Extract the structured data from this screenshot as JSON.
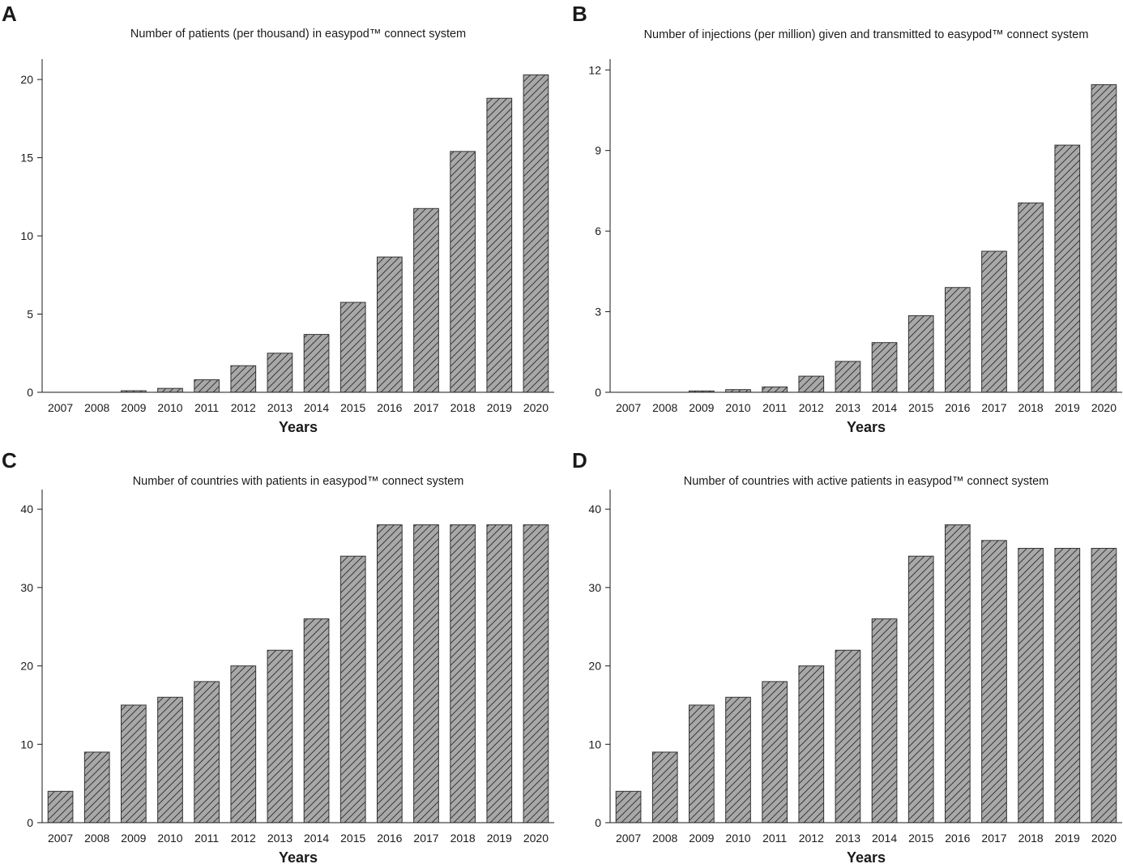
{
  "figure": {
    "bar_color": "#a8a8a8",
    "hatch_color": "#2a2a2a",
    "axis_color": "#1a1a1a"
  },
  "chart_data": [
    {
      "panel": "A",
      "type": "bar",
      "title": "Number of patients (per thousand) in easypod™ connect system",
      "xlabel": "Years",
      "ylabel": "",
      "categories": [
        "2007",
        "2008",
        "2009",
        "2010",
        "2011",
        "2012",
        "2013",
        "2014",
        "2015",
        "2016",
        "2017",
        "2018",
        "2019",
        "2020"
      ],
      "values": [
        0,
        0,
        0.1,
        0.25,
        0.8,
        1.7,
        2.5,
        3.7,
        5.75,
        8.65,
        11.75,
        15.4,
        18.8,
        20.3
      ],
      "ylim": [
        0,
        21.3
      ],
      "yticks": [
        0,
        5,
        10,
        15,
        20
      ],
      "ytick_labels": [
        "0",
        "5",
        "10",
        "15",
        "20"
      ],
      "grid": false
    },
    {
      "panel": "B",
      "type": "bar",
      "title": "Number of injections (per million) given and transmitted to easypod™ connect system",
      "xlabel": "Years",
      "ylabel": "",
      "categories": [
        "2007",
        "2008",
        "2009",
        "2010",
        "2011",
        "2012",
        "2013",
        "2014",
        "2015",
        "2016",
        "2017",
        "2018",
        "2019",
        "2020"
      ],
      "values": [
        0,
        0,
        0.05,
        0.1,
        0.2,
        0.6,
        1.15,
        1.85,
        2.85,
        3.9,
        5.25,
        7.05,
        9.2,
        11.45
      ],
      "ylim": [
        0,
        12.4
      ],
      "yticks": [
        0,
        3,
        6,
        9,
        12
      ],
      "ytick_labels": [
        "0",
        "3",
        "6",
        "9",
        "12"
      ],
      "grid": false
    },
    {
      "panel": "C",
      "type": "bar",
      "title": "Number of countries with patients in easypod™ connect system",
      "xlabel": "Years",
      "ylabel": "",
      "categories": [
        "2007",
        "2008",
        "2009",
        "2010",
        "2011",
        "2012",
        "2013",
        "2014",
        "2015",
        "2016",
        "2017",
        "2018",
        "2019",
        "2020"
      ],
      "values": [
        4,
        9,
        15,
        16,
        18,
        20,
        22,
        26,
        34,
        38,
        38,
        38,
        38,
        38
      ],
      "ylim": [
        0,
        42.5
      ],
      "yticks": [
        0,
        10,
        20,
        30,
        40
      ],
      "ytick_labels": [
        "0",
        "10",
        "20",
        "30",
        "40"
      ],
      "grid": false
    },
    {
      "panel": "D",
      "type": "bar",
      "title": "Number of countries with active patients in easypod™ connect system",
      "xlabel": "Years",
      "ylabel": "",
      "categories": [
        "2007",
        "2008",
        "2009",
        "2010",
        "2011",
        "2012",
        "2013",
        "2014",
        "2015",
        "2016",
        "2017",
        "2018",
        "2019",
        "2020"
      ],
      "values": [
        4,
        9,
        15,
        16,
        18,
        20,
        22,
        26,
        34,
        38,
        36,
        35,
        35,
        35
      ],
      "ylim": [
        0,
        42.5
      ],
      "yticks": [
        0,
        10,
        20,
        30,
        40
      ],
      "ytick_labels": [
        "0",
        "10",
        "20",
        "30",
        "40"
      ],
      "grid": false
    }
  ]
}
